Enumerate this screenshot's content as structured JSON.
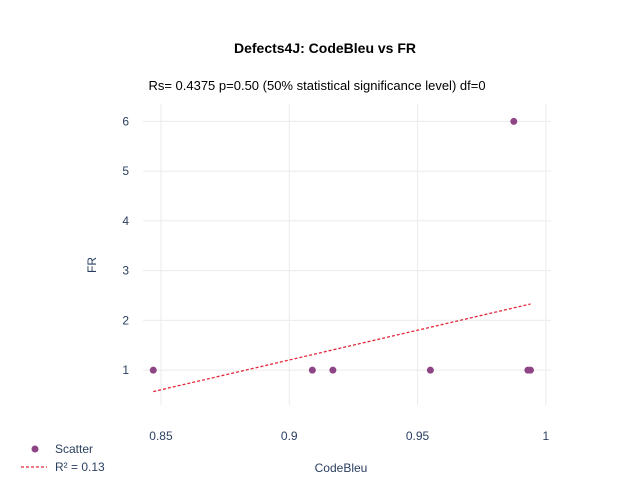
{
  "chart_data": {
    "type": "scatter",
    "title": "Defects4J: CodeBleu vs FR",
    "subtitle": "Rs= 0.4375  p=0.50 (50% statistical significance level)  df=0",
    "xlabel": "CodeBleu",
    "ylabel": "FR",
    "xlim": [
      0.843,
      1.002
    ],
    "ylim": [
      0.3,
      6.35
    ],
    "xticks": [
      0.85,
      0.9,
      0.95,
      1
    ],
    "xtick_labels": [
      "0.85",
      "0.9",
      "0.95",
      "1"
    ],
    "yticks": [
      1,
      2,
      3,
      4,
      5,
      6
    ],
    "ytick_labels": [
      "1",
      "2",
      "3",
      "4",
      "5",
      "6"
    ],
    "grid": true,
    "legend_position": "bottom-left",
    "series": [
      {
        "name": "Scatter",
        "kind": "markers",
        "color": "#8e4585",
        "x": [
          0.847,
          0.909,
          0.917,
          0.955,
          0.9875,
          0.993,
          0.994
        ],
        "y": [
          1,
          1,
          1,
          1,
          6,
          1,
          1
        ]
      },
      {
        "name": "R² = 0.13",
        "kind": "dashed-line",
        "color": "#e3263a",
        "x": [
          0.847,
          0.994
        ],
        "y": [
          0.57,
          2.33
        ]
      }
    ]
  }
}
